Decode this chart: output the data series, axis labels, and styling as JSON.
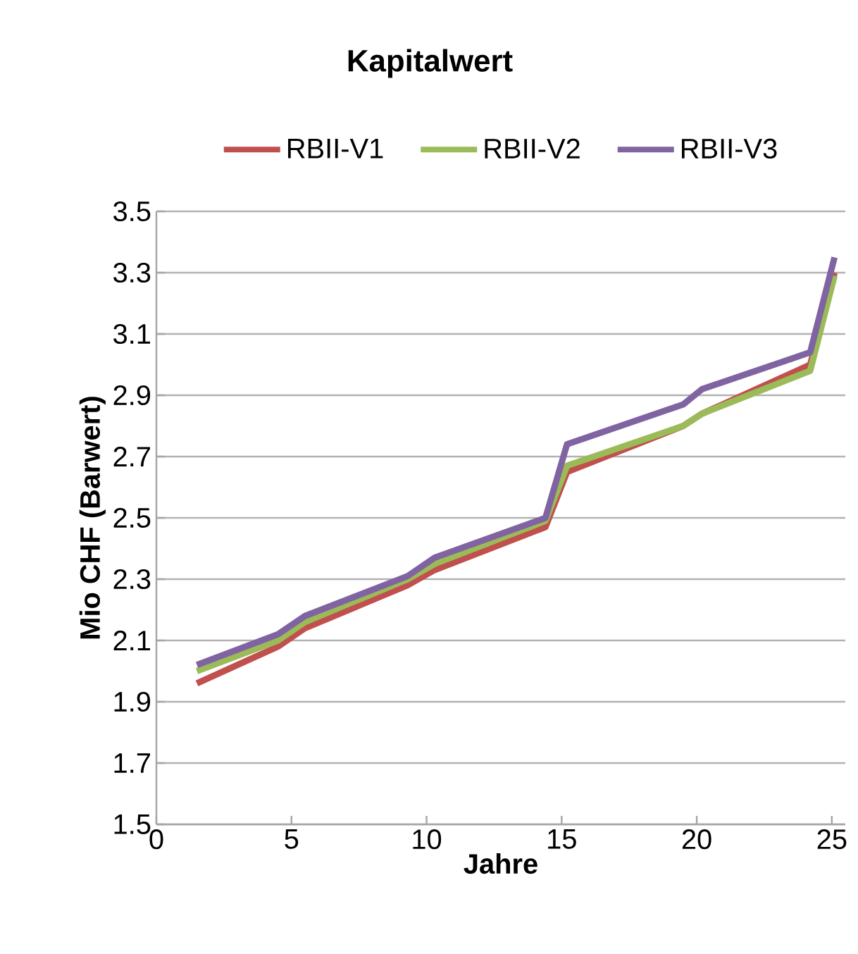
{
  "chart_data": {
    "type": "line",
    "title": "Kapitalwert",
    "xlabel": "Jahre",
    "ylabel": "Mio CHF (Barwert)",
    "xlim": [
      0,
      25.5
    ],
    "xticks": [
      0,
      5,
      10,
      15,
      20,
      25
    ],
    "ylim": [
      1.5,
      3.5
    ],
    "yticks": [
      1.5,
      1.7,
      1.9,
      2.1,
      2.3,
      2.5,
      2.7,
      2.9,
      3.1,
      3.3,
      3.5
    ],
    "grid": "y",
    "legend": "top",
    "marker": "none",
    "line_style": "solid",
    "series": [
      {
        "name": "RBII-V1",
        "color": "#c0504d",
        "x": [
          1.5,
          4.5,
          5.5,
          9.3,
          10.3,
          14.4,
          15.2,
          19.5,
          20.2,
          24.2,
          25.1
        ],
        "values": [
          1.96,
          2.08,
          2.14,
          2.28,
          2.33,
          2.47,
          2.65,
          2.8,
          2.84,
          3.0,
          3.3
        ]
      },
      {
        "name": "RBII-V2",
        "color": "#9bbb59",
        "x": [
          1.5,
          4.5,
          5.5,
          9.3,
          10.3,
          14.4,
          15.2,
          19.5,
          20.2,
          24.2,
          25.1
        ],
        "values": [
          2.0,
          2.1,
          2.16,
          2.3,
          2.35,
          2.49,
          2.67,
          2.8,
          2.84,
          2.98,
          3.29
        ]
      },
      {
        "name": "RBII-V3",
        "color": "#8064a2",
        "x": [
          1.5,
          4.5,
          5.5,
          9.3,
          10.3,
          14.4,
          15.2,
          19.5,
          20.2,
          24.2,
          25.1
        ],
        "values": [
          2.02,
          2.12,
          2.18,
          2.31,
          2.37,
          2.5,
          2.74,
          2.87,
          2.92,
          3.04,
          3.35
        ]
      }
    ]
  }
}
